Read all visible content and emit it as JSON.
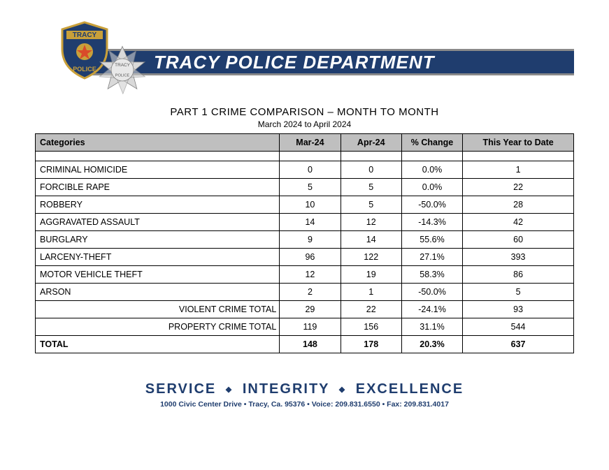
{
  "header": {
    "banner_text": "TRACY POLICE DEPARTMENT",
    "banner_bg": "#1f3d6e",
    "banner_text_color": "#ffffff",
    "shield_top_text": "TRACY",
    "shield_bottom_text": "POLICE",
    "star_top_text": "TRACY",
    "star_bottom_text": "POLICE"
  },
  "report": {
    "title": "PART 1 CRIME COMPARISON – MONTH TO MONTH",
    "period": "March 2024 to April 2024"
  },
  "table": {
    "header_bg": "#bfbfbf",
    "columns": [
      "Categories",
      "Mar-24",
      "Apr-24",
      "% Change",
      "This Year to Date"
    ],
    "rows": [
      {
        "cat": "CRIMINAL HOMICIDE",
        "m1": "0",
        "m2": "0",
        "pct": "0.0%",
        "ytd": "1"
      },
      {
        "cat": "FORCIBLE RAPE",
        "m1": "5",
        "m2": "5",
        "pct": "0.0%",
        "ytd": "22"
      },
      {
        "cat": "ROBBERY",
        "m1": "10",
        "m2": "5",
        "pct": "-50.0%",
        "ytd": "28"
      },
      {
        "cat": "AGGRAVATED ASSAULT",
        "m1": "14",
        "m2": "12",
        "pct": "-14.3%",
        "ytd": "42"
      },
      {
        "cat": "BURGLARY",
        "m1": "9",
        "m2": "14",
        "pct": "55.6%",
        "ytd": "60"
      },
      {
        "cat": "LARCENY-THEFT",
        "m1": "96",
        "m2": "122",
        "pct": "27.1%",
        "ytd": "393"
      },
      {
        "cat": "MOTOR VEHICLE THEFT",
        "m1": "12",
        "m2": "19",
        "pct": "58.3%",
        "ytd": "86"
      },
      {
        "cat": "ARSON",
        "m1": "2",
        "m2": "1",
        "pct": "-50.0%",
        "ytd": "5"
      }
    ],
    "subtotals": [
      {
        "cat": "VIOLENT CRIME TOTAL",
        "m1": "29",
        "m2": "22",
        "pct": "-24.1%",
        "ytd": "93"
      },
      {
        "cat": "PROPERTY CRIME TOTAL",
        "m1": "119",
        "m2": "156",
        "pct": "31.1%",
        "ytd": "544"
      }
    ],
    "total": {
      "cat": "TOTAL",
      "m1": "148",
      "m2": "178",
      "pct": "20.3%",
      "ytd": "637"
    }
  },
  "footer": {
    "motto_parts": [
      "SERVICE",
      "INTEGRITY",
      "EXCELLENCE"
    ],
    "address": "1000 Civic Center Drive • Tracy, Ca. 95376 • Voice: 209.831.6550 • Fax: 209.831.4017",
    "color": "#1f3d6e"
  }
}
